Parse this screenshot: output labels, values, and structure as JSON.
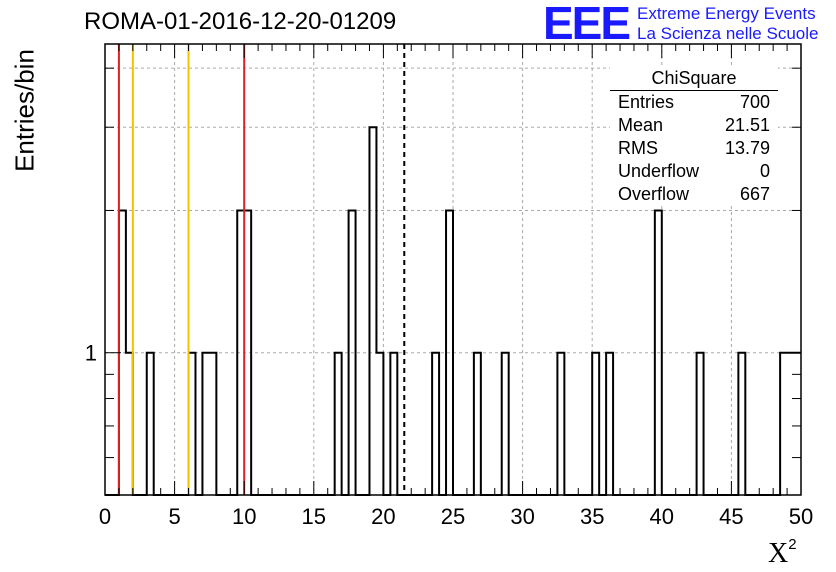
{
  "chart_data": {
    "type": "histogram",
    "title": "ROMA-01-2016-12-20-01209",
    "ylabel": "Entries/bin",
    "xlabel": "X",
    "xlabel_superscript": "2",
    "xlim": [
      0,
      50
    ],
    "ylim": [
      0.5,
      4.5
    ],
    "log_y": true,
    "grid": true,
    "x_ticks": [
      0,
      5,
      10,
      15,
      20,
      25,
      30,
      35,
      40,
      45,
      50
    ],
    "y_tick_labels": [
      "1"
    ],
    "bin_width": 0.5,
    "bins": [
      {
        "x": 1.0,
        "count": 2
      },
      {
        "x": 1.5,
        "count": 1
      },
      {
        "x": 3.0,
        "count": 1
      },
      {
        "x": 6.0,
        "count": 1
      },
      {
        "x": 7.0,
        "count": 1
      },
      {
        "x": 7.5,
        "count": 1
      },
      {
        "x": 9.5,
        "count": 2
      },
      {
        "x": 10.0,
        "count": 2
      },
      {
        "x": 16.5,
        "count": 1
      },
      {
        "x": 17.5,
        "count": 2
      },
      {
        "x": 19.0,
        "count": 3
      },
      {
        "x": 19.5,
        "count": 1
      },
      {
        "x": 20.5,
        "count": 1
      },
      {
        "x": 23.5,
        "count": 1
      },
      {
        "x": 24.5,
        "count": 2
      },
      {
        "x": 26.5,
        "count": 1
      },
      {
        "x": 28.5,
        "count": 1
      },
      {
        "x": 32.5,
        "count": 1
      },
      {
        "x": 35.0,
        "count": 1
      },
      {
        "x": 36.0,
        "count": 1
      },
      {
        "x": 39.5,
        "count": 2
      },
      {
        "x": 42.5,
        "count": 1
      },
      {
        "x": 45.5,
        "count": 1
      },
      {
        "x": 48.5,
        "count": 1
      },
      {
        "x": 49.0,
        "count": 1
      },
      {
        "x": 49.5,
        "count": 1
      }
    ],
    "vertical_lines": [
      {
        "x": 1.0,
        "color": "#dd2222",
        "style": "solid"
      },
      {
        "x": 2.0,
        "color": "#f2c200",
        "style": "solid"
      },
      {
        "x": 6.0,
        "color": "#f2c200",
        "style": "solid"
      },
      {
        "x": 10.0,
        "color": "#dd2222",
        "style": "solid"
      },
      {
        "x": 21.5,
        "color": "#000000",
        "style": "dashed"
      }
    ],
    "stats": {
      "title": "ChiSquare",
      "rows": [
        {
          "label": "Entries",
          "value": "700"
        },
        {
          "label": "Mean",
          "value": "21.51"
        },
        {
          "label": "RMS",
          "value": "13.79"
        },
        {
          "label": "Underflow",
          "value": "0"
        },
        {
          "label": "Overflow",
          "value": "667"
        }
      ]
    }
  },
  "logo": {
    "mark": "EEE",
    "line1": "Extreme Energy Events",
    "line2": "La Scienza nelle Scuole",
    "color": "#1a1aff"
  }
}
